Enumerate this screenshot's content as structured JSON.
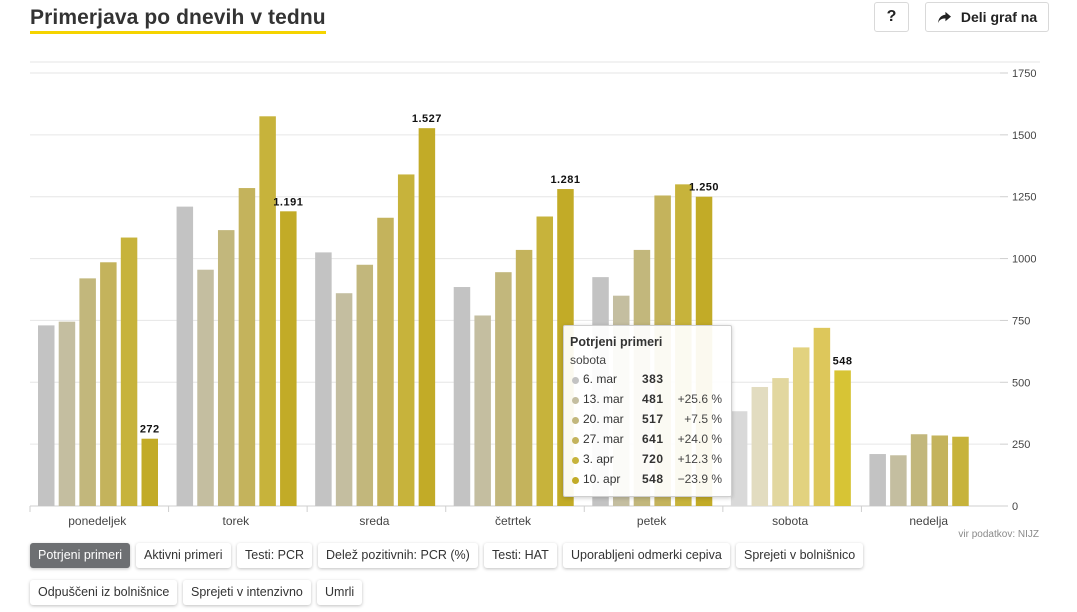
{
  "header": {
    "title": "Primerjava po dnevih v tednu",
    "help_label": "?",
    "share_label": "Deli graf na",
    "share_icon": "share-arrow-icon"
  },
  "source": "vir podatkov: NIJZ",
  "tabs": [
    {
      "label": "Potrjeni primeri",
      "active": true
    },
    {
      "label": "Aktivni primeri",
      "active": false
    },
    {
      "label": "Testi: PCR",
      "active": false
    },
    {
      "label": "Delež pozitivnih: PCR (%)",
      "active": false
    },
    {
      "label": "Testi: HAT",
      "active": false
    },
    {
      "label": "Uporabljeni odmerki cepiva",
      "active": false
    },
    {
      "label": "Sprejeti v bolnišnico",
      "active": false
    },
    {
      "label": "Odpuščeni iz bolnišnice",
      "active": false
    },
    {
      "label": "Sprejeti v intenzivno",
      "active": false
    },
    {
      "label": "Umrli",
      "active": false
    }
  ],
  "tooltip": {
    "title": "Potrjeni primeri",
    "day": "sobota",
    "rows": [
      {
        "date": "6. mar",
        "value": "383",
        "change": ""
      },
      {
        "date": "13. mar",
        "value": "481",
        "change": "+25.6 %"
      },
      {
        "date": "20. mar",
        "value": "517",
        "change": "+7.5 %"
      },
      {
        "date": "27. mar",
        "value": "641",
        "change": "+24.0 %"
      },
      {
        "date": "3. apr",
        "value": "720",
        "change": "+12.3 %"
      },
      {
        "date": "10. apr",
        "value": "548",
        "change": "−23.9 %"
      }
    ]
  },
  "chart_data": {
    "type": "bar",
    "title": "Primerjava po dnevih v tednu",
    "categories": [
      "ponedeljek",
      "torek",
      "sreda",
      "četrtek",
      "petek",
      "sobota",
      "nedelja"
    ],
    "series": [
      {
        "name": "6. mar",
        "color": "#c3c3c3",
        "values": [
          730,
          1210,
          1025,
          885,
          925,
          383,
          210
        ]
      },
      {
        "name": "13. mar",
        "color": "#c4bea0",
        "values": [
          745,
          955,
          860,
          770,
          850,
          481,
          205
        ]
      },
      {
        "name": "20. mar",
        "color": "#c2b77c",
        "values": [
          920,
          1115,
          975,
          945,
          1035,
          517,
          290
        ]
      },
      {
        "name": "27. mar",
        "color": "#c4b35c",
        "values": [
          985,
          1285,
          1165,
          1035,
          1255,
          641,
          285
        ]
      },
      {
        "name": "3. apr",
        "color": "#c7b33b",
        "values": [
          1085,
          1575,
          1340,
          1170,
          1300,
          720,
          280
        ]
      },
      {
        "name": "10. apr",
        "color": "#c2ab27",
        "values": [
          272,
          1191,
          1527,
          1281,
          1250,
          548,
          null
        ]
      }
    ],
    "data_labels": [
      "272",
      "1.191",
      "1.527",
      "1.281",
      "1.250",
      "548"
    ],
    "y_ticks": [
      "0",
      "250",
      "500",
      "750",
      "1000",
      "1250",
      "1500",
      "1750"
    ],
    "ylim": [
      0,
      1750
    ],
    "grid": true,
    "axis_position": "right",
    "highlighted_category": "sobota",
    "highlight_colors": [
      "#d9d9d9",
      "#e2dcc0",
      "#e2d79f",
      "#e2d27f",
      "#ddc75b",
      "#d7c435"
    ]
  }
}
